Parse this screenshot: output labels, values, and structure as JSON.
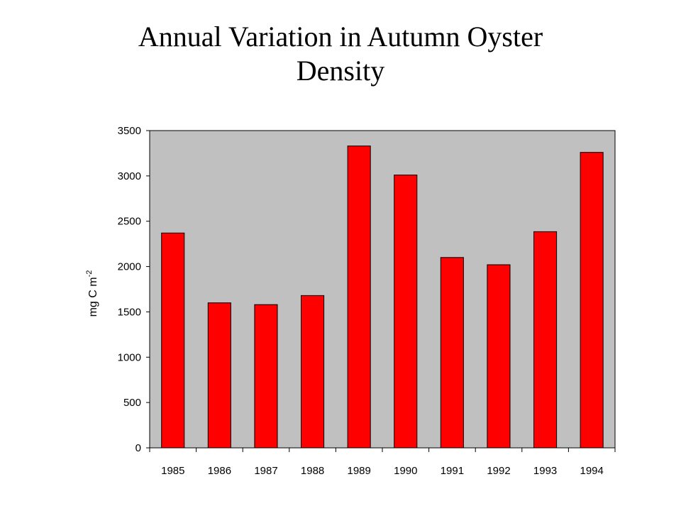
{
  "chart_data": {
    "type": "bar",
    "title_line1": "Annual Variation in Autumn Oyster",
    "title_line2": "Density",
    "categories": [
      "1985",
      "1986",
      "1987",
      "1988",
      "1989",
      "1990",
      "1991",
      "1992",
      "1993",
      "1994"
    ],
    "values": [
      2370,
      1600,
      1580,
      1680,
      3330,
      3010,
      2100,
      2020,
      2385,
      3260
    ],
    "ylabel_main": "mg C m",
    "ylabel_superscript": "-2",
    "xlabel": "",
    "ylim": [
      0,
      3500
    ],
    "yticks": [
      "0",
      "500",
      "1000",
      "1500",
      "2000",
      "2500",
      "3000",
      "3500"
    ],
    "grid": false,
    "legend": "none",
    "colors": {
      "bar": "#ff0000",
      "plot_background": "#c0c0c0",
      "border": "#000000"
    }
  }
}
